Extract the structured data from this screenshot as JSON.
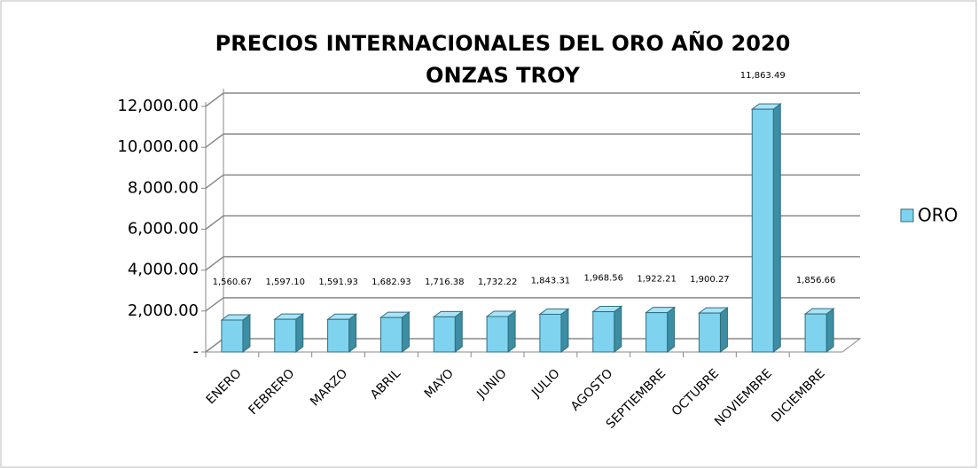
{
  "chart_data": {
    "type": "bar3d",
    "title": "PRECIOS INTERNACIONALES DEL ORO AÑO 2020",
    "subtitle": "ONZAS TROY",
    "categories": [
      "ENERO",
      "FEBRERO",
      "MARZO",
      "ABRIL",
      "MAYO",
      "JUNIO",
      "JULIO",
      "AGOSTO",
      "SEPTIEMBRE",
      "OCTUBRE",
      "NOVIEMBRE",
      "DICIEMBRE"
    ],
    "series": [
      {
        "name": "ORO",
        "color": "#7fd3ee",
        "values": [
          1560.67,
          1597.1,
          1591.93,
          1682.93,
          1716.38,
          1732.22,
          1843.31,
          1968.56,
          1922.21,
          1900.27,
          11863.49,
          1856.66
        ],
        "value_labels": [
          "1,560.67",
          "1,597.10",
          "1,591.93",
          "1,682.93",
          "1,716.38",
          "1,732.22",
          "1,843.31",
          "1,968.56",
          "1,922.21",
          "1,900.27",
          "11,863.49",
          "1,856.66"
        ]
      }
    ],
    "ylim": [
      0,
      12000
    ],
    "yticks": [
      {
        "value": 0,
        "label": "-"
      },
      {
        "value": 2000,
        "label": "2,000.00"
      },
      {
        "value": 4000,
        "label": "4,000.00"
      },
      {
        "value": 6000,
        "label": "6,000.00"
      },
      {
        "value": 8000,
        "label": "8,000.00"
      },
      {
        "value": 10000,
        "label": "10,000.00"
      },
      {
        "value": 12000,
        "label": "12,000.00"
      }
    ],
    "grid": true,
    "legend": "right"
  }
}
